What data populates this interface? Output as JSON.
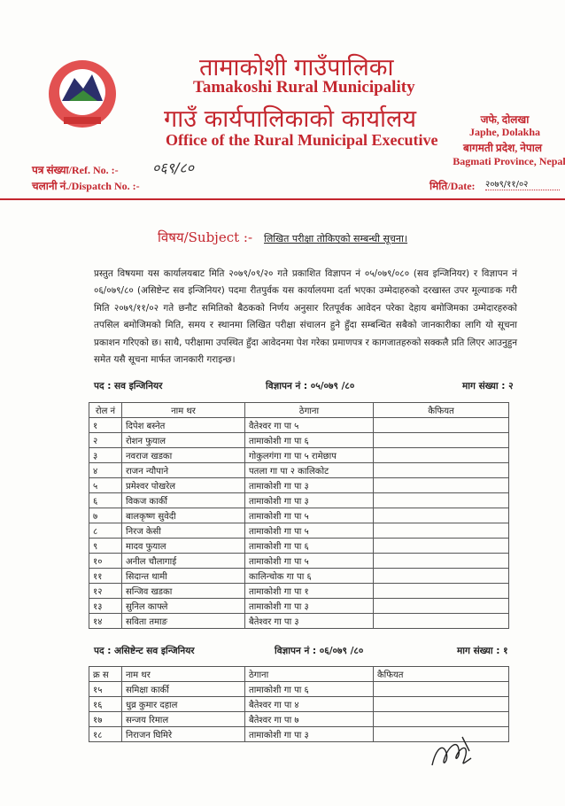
{
  "header": {
    "title_np": "तामाकोशी गाउँपालिका",
    "title_en": "Tamakoshi Rural Municipality",
    "office_np": "गाउँ कार्यपालिकाको कार्यालय",
    "office_en": "Office of the Rural Municipal Executive",
    "address_np_1": "जफे, दोलखा",
    "address_en_1": "Japhe, Dolakha",
    "address_np_2": "बागमती प्रदेश, नेपाल",
    "address_en_2": "Bagmati Province, Nepal",
    "ref_label": "पत्र संख्या/Ref. No. :-",
    "ref_value": "०६९/८०",
    "dispatch_label": "चलानी नं./Dispatch No. :-",
    "date_label": "मिति/Date:",
    "date_value": "२०७९/११/०२",
    "accent_color": "#c4262e"
  },
  "subject": {
    "label": "विषय/Subject :-",
    "text": "लिखित परीक्षा तोकिएको सम्बन्धी सूचना।"
  },
  "body": "प्रस्तुत विषयमा यस कार्यालयबाट मिति २०७९/०९/२० गते प्रकाशित विज्ञापन नं ०५/०७९/०८० (सव इन्जिनियर) र विज्ञापन नं ०६/०७९/८० (असिष्टेन्ट सव इन्जिनियर) पदमा रीतपुर्वक यस कार्यालयमा दर्ता भएका उम्मेदाहरुको दरखास्त उपर मूल्याङक गरी मिति २०७९/११/०२ गते छनौट समितिको बैठकको निर्णय अनुसार रितपूर्वक आवेदन परेका देहाय बमोजिमका उम्मेदारहरुको तपसिल बमोजिमको मिति, समय र स्थानमा लिखित परीक्षा संचालन हुने हुँदा सम्बन्धित सबैको जानकारीका लागि यो सूचना प्रकाशन गरिएको छ। साथै, परीक्षामा उपस्थित हुँदा आवेदनमा पेश गरेका प्रमाणपत्र र कागजातहरुको सक्कलै प्रति लिएर आउनुहुन समेत यसै सूचना मार्फत जानकारी गराइन्छ।",
  "section1": {
    "post": "पद : सव इन्जिनियर",
    "ad_no": "विज्ञापन नं : ०५/०७९ /८०",
    "demand": "माग संख्या : २",
    "headers": [
      "रोल नं",
      "नाम थर",
      "ठेगाना",
      "कैफियत"
    ],
    "rows": [
      [
        "१",
        "दिपेश बस्नेत",
        "वैतेश्वर गा पा ५",
        ""
      ],
      [
        "२",
        "रोशन फुयाल",
        "तामाकोशी गा पा ६",
        ""
      ],
      [
        "३",
        "नवराज खडका",
        "गोकुलगंगा गा पा ५ रामेछाप",
        ""
      ],
      [
        "४",
        "राजन न्यौपाने",
        "पतला गा पा २ कालिकोट",
        ""
      ],
      [
        "५",
        "प्रमेश्वर पोखरेल",
        "तामाकोशी गा पा ३",
        ""
      ],
      [
        "६",
        "विकज कार्की",
        "तामाकोशी गा पा ३",
        ""
      ],
      [
        "७",
        "बालकृष्ण सुवेदी",
        "तामाकोशी गा पा ५",
        ""
      ],
      [
        "८",
        "निरज केसी",
        "तामाकोशी गा पा ५",
        ""
      ],
      [
        "९",
        "मादव फुयाल",
        "तामाकोशी गा पा ६",
        ""
      ],
      [
        "१०",
        "अनील चौलागाई",
        "तामाकोशी गा पा ५",
        ""
      ],
      [
        "११",
        "सिदान्त थामी",
        "कालिन्चोक गा पा ६",
        ""
      ],
      [
        "१२",
        "सन्जिव खडका",
        "तामाकोशी गा पा १",
        ""
      ],
      [
        "१३",
        "सुनिल काफ्ले",
        "तामाकोशी गा पा ३",
        ""
      ],
      [
        "१४",
        "सविता तमाङ",
        "बैतेश्वर गा पा ३",
        ""
      ]
    ]
  },
  "section2": {
    "post": "पद : असिष्टेन्ट सव इन्जिनियर",
    "ad_no": "विज्ञापन नं : ०६/०७९ /८०",
    "demand": "माग संख्या : १",
    "headers": [
      "क्र स",
      "नाम थर",
      "ठेगाना",
      "कैफियत"
    ],
    "rows": [
      [
        "१५",
        "समिक्षा कार्की",
        "तामाकोशी गा पा ६",
        ""
      ],
      [
        "१६",
        "धुव्र कुमार दहाल",
        "बैतेश्वर गा पा ४",
        ""
      ],
      [
        "१७",
        "सन्जय रिमाल",
        "बैतेश्वर गा पा ७",
        ""
      ],
      [
        "१८",
        "निराजन घिमिरे",
        "तामाकोशी गा पा ३",
        ""
      ]
    ]
  }
}
